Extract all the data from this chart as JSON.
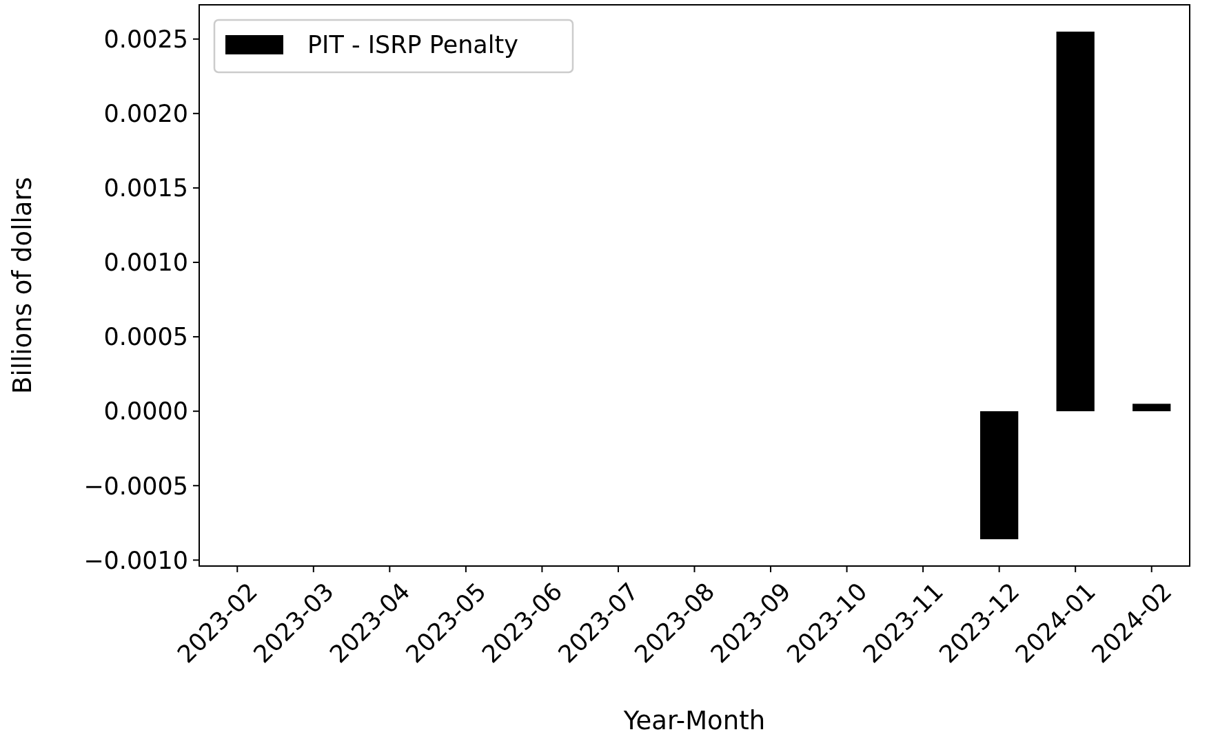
{
  "chart_data": {
    "type": "bar",
    "xlabel": "Year-Month",
    "ylabel": "Billions of dollars",
    "categories": [
      "2023-02",
      "2023-03",
      "2023-04",
      "2023-05",
      "2023-06",
      "2023-07",
      "2023-08",
      "2023-09",
      "2023-10",
      "2023-11",
      "2023-12",
      "2024-01",
      "2024-02"
    ],
    "series": [
      {
        "name": "PIT - ISRP Penalty",
        "color": "#000000",
        "values": [
          null,
          null,
          null,
          null,
          null,
          null,
          null,
          null,
          null,
          null,
          -0.00086,
          0.00255,
          5e-05
        ]
      }
    ],
    "ylim": [
      -0.00104,
      0.00273
    ],
    "yticks": [
      {
        "value": -0.001,
        "label": "−0.0010"
      },
      {
        "value": -0.0005,
        "label": "−0.0005"
      },
      {
        "value": 0,
        "label": "0.0000"
      },
      {
        "value": 0.0005,
        "label": "0.0005"
      },
      {
        "value": 0.001,
        "label": "0.0010"
      },
      {
        "value": 0.0015,
        "label": "0.0015"
      },
      {
        "value": 0.002,
        "label": "0.0020"
      },
      {
        "value": 0.0025,
        "label": "0.0025"
      }
    ],
    "legend": "top left",
    "grid": false
  }
}
